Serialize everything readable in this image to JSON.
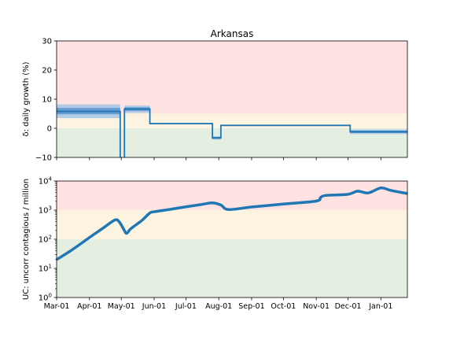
{
  "figure_title": "Arkansas",
  "colors": {
    "band_red": "#ffe2e2",
    "band_yellow": "#fdf3e1",
    "band_green": "#e5efe1",
    "line": "#1f77b4",
    "ci_dark": "#5b93cc",
    "ci_light": "#a8c8e8",
    "axis": "#000000"
  },
  "chart_data": [
    {
      "type": "line",
      "name": "growth",
      "title": "Arkansas",
      "ylabel": "δ: daily growth (%)",
      "xlabel": "",
      "ylim": [
        -10,
        30
      ],
      "xlim": [
        "2020-03-01",
        "2021-01-26"
      ],
      "yticks": [
        -10,
        0,
        10,
        20,
        30
      ],
      "ytick_labels": [
        "−10",
        "0",
        "10",
        "20",
        "30"
      ],
      "grid": false,
      "zones": [
        {
          "from": 5,
          "to": 30,
          "color": "band_red"
        },
        {
          "from": 0,
          "to": 5,
          "color": "band_yellow"
        },
        {
          "from": -10,
          "to": 0,
          "color": "band_green"
        }
      ],
      "segments": [
        {
          "start": "2020-03-01",
          "end": "2020-04-30",
          "value": 5.8,
          "ci_outer": [
            3.5,
            8.2
          ],
          "ci_inner": [
            4.8,
            7.0
          ]
        },
        {
          "start": "2020-05-04",
          "end": "2020-05-28",
          "value": 6.6,
          "ci_outer": [
            5.3,
            7.8
          ],
          "ci_inner": [
            6.0,
            7.2
          ]
        },
        {
          "start": "2020-05-28",
          "end": "2020-07-26",
          "value": 1.6,
          "ci_outer": [
            1.4,
            1.8
          ],
          "ci_inner": [
            1.5,
            1.7
          ]
        },
        {
          "start": "2020-07-26",
          "end": "2020-08-03",
          "value": -3.3,
          "ci_outer": [
            -3.9,
            -2.7
          ],
          "ci_inner": [
            -3.6,
            -3.0
          ]
        },
        {
          "start": "2020-08-03",
          "end": "2020-12-03",
          "value": 1.0,
          "ci_outer": [
            0.8,
            1.2
          ],
          "ci_inner": [
            0.9,
            1.1
          ]
        },
        {
          "start": "2020-12-03",
          "end": "2021-01-26",
          "value": -1.2,
          "ci_outer": [
            -2.0,
            -0.4
          ],
          "ci_inner": [
            -1.6,
            -0.8
          ]
        }
      ],
      "drops": [
        {
          "date": "2020-04-30",
          "from": 5.8,
          "to": -10
        },
        {
          "date": "2020-05-04",
          "from": -10,
          "to": 6.6
        }
      ]
    },
    {
      "type": "line",
      "name": "uncorr_contagious",
      "ylabel": "UC: uncorr contagious / million",
      "xlabel": "",
      "yscale": "log",
      "ylim": [
        1,
        10000
      ],
      "xlim": [
        "2020-03-01",
        "2021-01-26"
      ],
      "ytick_exponents": [
        0,
        1,
        2,
        3,
        4
      ],
      "ytick_base": "10",
      "grid": false,
      "zones": [
        {
          "from": 1000,
          "to": 10000,
          "color": "band_red"
        },
        {
          "from": 100,
          "to": 1000,
          "color": "band_yellow"
        },
        {
          "from": 1,
          "to": 100,
          "color": "band_green"
        }
      ],
      "x": [
        "2020-03-01",
        "2020-03-15",
        "2020-04-01",
        "2020-04-15",
        "2020-04-25",
        "2020-04-29",
        "2020-05-03",
        "2020-05-06",
        "2020-05-10",
        "2020-05-20",
        "2020-05-28",
        "2020-06-01",
        "2020-06-15",
        "2020-07-01",
        "2020-07-15",
        "2020-07-26",
        "2020-08-03",
        "2020-08-10",
        "2020-09-01",
        "2020-10-01",
        "2020-11-01",
        "2020-11-05",
        "2020-11-10",
        "2020-12-01",
        "2020-12-10",
        "2020-12-20",
        "2021-01-01",
        "2021-01-10",
        "2021-01-26"
      ],
      "values": [
        20,
        42,
        115,
        260,
        460,
        400,
        230,
        160,
        230,
        430,
        800,
        880,
        1050,
        1300,
        1550,
        1780,
        1500,
        1050,
        1280,
        1620,
        2050,
        2700,
        3200,
        3500,
        4500,
        3900,
        5800,
        4800,
        3700
      ]
    }
  ],
  "x_ticks": [
    {
      "date": "2020-03-01",
      "label": "Mar-01"
    },
    {
      "date": "2020-04-01",
      "label": "Apr-01"
    },
    {
      "date": "2020-05-01",
      "label": "May-01"
    },
    {
      "date": "2020-06-01",
      "label": "Jun-01"
    },
    {
      "date": "2020-07-01",
      "label": "Jul-01"
    },
    {
      "date": "2020-08-01",
      "label": "Aug-01"
    },
    {
      "date": "2020-09-01",
      "label": "Sep-01"
    },
    {
      "date": "2020-10-01",
      "label": "Oct-01"
    },
    {
      "date": "2020-11-01",
      "label": "Nov-01"
    },
    {
      "date": "2020-12-01",
      "label": "Dec-01"
    },
    {
      "date": "2021-01-01",
      "label": "Jan-01"
    }
  ]
}
